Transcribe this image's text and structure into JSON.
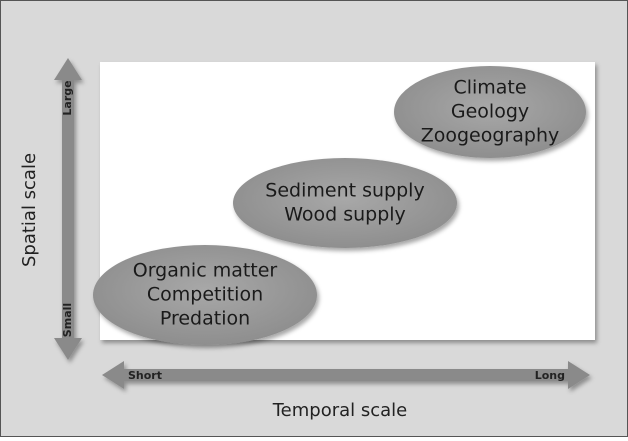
{
  "y_axis": {
    "label": "Spatial scale",
    "low": "Small",
    "high": "Large"
  },
  "x_axis": {
    "label": "Temporal scale",
    "low": "Short",
    "high": "Long"
  },
  "nodes": [
    {
      "lines": [
        "Organic matter",
        "Competition",
        "Predation"
      ]
    },
    {
      "lines": [
        "Sediment supply",
        "Wood supply"
      ]
    },
    {
      "lines": [
        "Climate",
        "Geology",
        "Zoogeography"
      ]
    }
  ]
}
